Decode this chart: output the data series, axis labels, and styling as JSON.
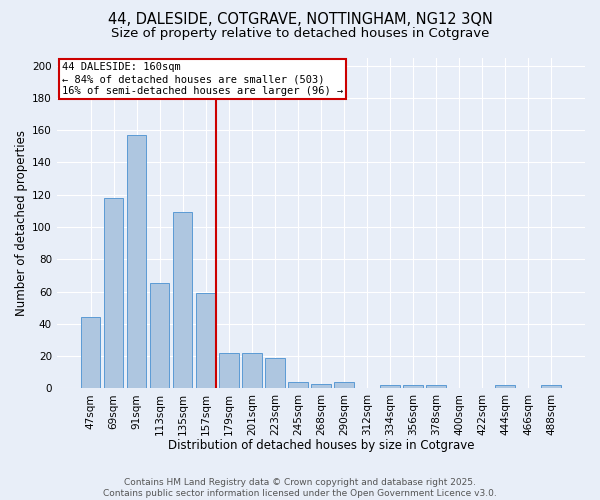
{
  "title_line1": "44, DALESIDE, COTGRAVE, NOTTINGHAM, NG12 3QN",
  "title_line2": "Size of property relative to detached houses in Cotgrave",
  "xlabel": "Distribution of detached houses by size in Cotgrave",
  "ylabel": "Number of detached properties",
  "categories": [
    "47sqm",
    "69sqm",
    "91sqm",
    "113sqm",
    "135sqm",
    "157sqm",
    "179sqm",
    "201sqm",
    "223sqm",
    "245sqm",
    "268sqm",
    "290sqm",
    "312sqm",
    "334sqm",
    "356sqm",
    "378sqm",
    "400sqm",
    "422sqm",
    "444sqm",
    "466sqm",
    "488sqm"
  ],
  "values": [
    44,
    118,
    157,
    65,
    109,
    59,
    22,
    22,
    19,
    4,
    3,
    4,
    0,
    2,
    2,
    2,
    0,
    0,
    2,
    0,
    2
  ],
  "bar_color": "#aec6e0",
  "bar_edge_color": "#5b9bd5",
  "highlight_index": 5,
  "annotation_line1": "44 DALESIDE: 160sqm",
  "annotation_line2": "← 84% of detached houses are smaller (503)",
  "annotation_line3": "16% of semi-detached houses are larger (96) →",
  "annotation_box_color": "#ffffff",
  "annotation_box_edge": "#cc0000",
  "red_line_color": "#cc0000",
  "ylim": [
    0,
    205
  ],
  "yticks": [
    0,
    20,
    40,
    60,
    80,
    100,
    120,
    140,
    160,
    180,
    200
  ],
  "footer_line1": "Contains HM Land Registry data © Crown copyright and database right 2025.",
  "footer_line2": "Contains public sector information licensed under the Open Government Licence v3.0.",
  "background_color": "#e8eef8",
  "grid_color": "#ffffff",
  "title_fontsize": 10.5,
  "subtitle_fontsize": 9.5,
  "axis_label_fontsize": 8.5,
  "tick_fontsize": 7.5,
  "footer_fontsize": 6.5,
  "annotation_fontsize": 7.5
}
